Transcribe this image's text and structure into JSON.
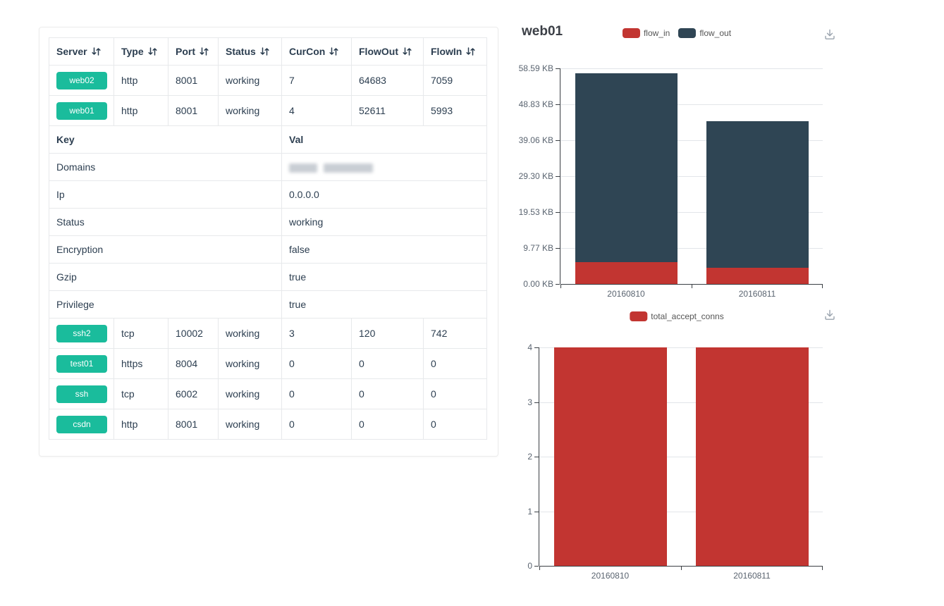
{
  "colors": {
    "badge_teal": "#1abc9c",
    "chart_red": "#c23531",
    "chart_dark_blue": "#2f4554"
  },
  "table": {
    "headers": [
      "Server",
      "Type",
      "Port",
      "Status",
      "CurCon",
      "FlowOut",
      "FlowIn"
    ],
    "rows_top": [
      {
        "name": "web02",
        "type": "http",
        "port": "8001",
        "status": "working",
        "curcon": "7",
        "flowout": "64683",
        "flowin": "7059"
      },
      {
        "name": "web01",
        "type": "http",
        "port": "8001",
        "status": "working",
        "curcon": "4",
        "flowout": "52611",
        "flowin": "5993"
      }
    ],
    "detail": {
      "key_header": "Key",
      "val_header": "Val",
      "rows": [
        {
          "key": "Domains",
          "val": "",
          "redacted": true
        },
        {
          "key": "Ip",
          "val": "0.0.0.0"
        },
        {
          "key": "Status",
          "val": "working"
        },
        {
          "key": "Encryption",
          "val": "false"
        },
        {
          "key": "Gzip",
          "val": "true"
        },
        {
          "key": "Privilege",
          "val": "true"
        }
      ]
    },
    "rows_bottom": [
      {
        "name": "ssh2",
        "type": "tcp",
        "port": "10002",
        "status": "working",
        "curcon": "3",
        "flowout": "120",
        "flowin": "742"
      },
      {
        "name": "test01",
        "type": "https",
        "port": "8004",
        "status": "working",
        "curcon": "0",
        "flowout": "0",
        "flowin": "0"
      },
      {
        "name": "ssh",
        "type": "tcp",
        "port": "6002",
        "status": "working",
        "curcon": "0",
        "flowout": "0",
        "flowin": "0"
      },
      {
        "name": "csdn",
        "type": "http",
        "port": "8001",
        "status": "working",
        "curcon": "0",
        "flowout": "0",
        "flowin": "0"
      }
    ]
  },
  "chart_data": [
    {
      "type": "bar",
      "stacked": true,
      "title": "web01",
      "categories": [
        "20160810",
        "20160811"
      ],
      "series": [
        {
          "name": "flow_in",
          "color": "#c23531",
          "values": [
            5.85,
            4.4
          ]
        },
        {
          "name": "flow_out",
          "color": "#2f4554",
          "values": [
            51.38,
            39.8
          ]
        }
      ],
      "value_unit": "KB",
      "y_ticks": [
        "58.59 KB",
        "48.83 KB",
        "39.06 KB",
        "29.30 KB",
        "19.53 KB",
        "9.77 KB",
        "0.00 KB"
      ],
      "ymax": 58.59,
      "legend_position": "top-center",
      "grid": "on"
    },
    {
      "type": "bar",
      "stacked": false,
      "title": "",
      "categories": [
        "20160810",
        "20160811"
      ],
      "series": [
        {
          "name": "total_accept_conns",
          "color": "#c23531",
          "values": [
            4,
            4
          ]
        }
      ],
      "y_ticks": [
        "4",
        "3",
        "2",
        "1",
        "0"
      ],
      "ymax": 4,
      "legend_position": "top-center",
      "grid": "on"
    }
  ]
}
